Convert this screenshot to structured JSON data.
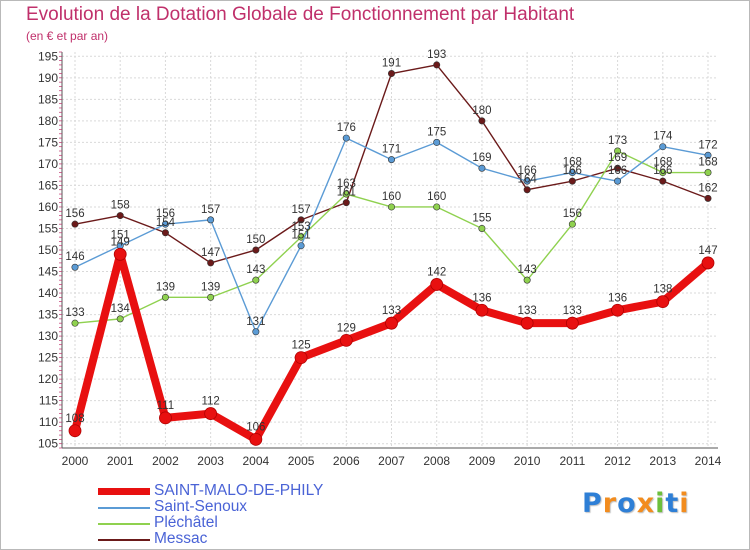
{
  "title": "Evolution de la Dotation Globale de Fonctionnement par Habitant",
  "subtitle": "(en € et par an)",
  "logo": {
    "text": "Proxiti",
    "letters": [
      {
        "ch": "P",
        "color": "#2e7fd6"
      },
      {
        "ch": "r",
        "color": "#f28c1e"
      },
      {
        "ch": "o",
        "color": "#2e7fd6"
      },
      {
        "ch": "x",
        "color": "#f28c1e"
      },
      {
        "ch": "i",
        "color": "#6dbf3b"
      },
      {
        "ch": "t",
        "color": "#2e7fd6"
      },
      {
        "ch": "i",
        "color": "#f28c1e"
      }
    ]
  },
  "chart_data": {
    "type": "line",
    "title": "Evolution de la Dotation Globale de Fonctionnement par Habitant",
    "subtitle": "(en € et par an)",
    "x": [
      "2000",
      "2001",
      "2002",
      "2003",
      "2004",
      "2005",
      "2006",
      "2007",
      "2008",
      "2009",
      "2010",
      "2011",
      "2012",
      "2013",
      "2014"
    ],
    "ylim": [
      104,
      196
    ],
    "yticks": [
      105,
      110,
      115,
      120,
      125,
      130,
      135,
      140,
      145,
      150,
      155,
      160,
      165,
      170,
      175,
      180,
      185,
      190,
      195
    ],
    "grid": true,
    "legend_position": "bottom-left",
    "series": [
      {
        "name": "SAINT-MALO-DE-PHILY",
        "color": "#e81010",
        "values": [
          108,
          149,
          111,
          112,
          106,
          125,
          129,
          133,
          142,
          136,
          133,
          133,
          136,
          138,
          147
        ]
      },
      {
        "name": "Saint-Senoux",
        "color": "#5b9bd5",
        "values": [
          146,
          151,
          156,
          157,
          131,
          151,
          176,
          171,
          175,
          169,
          166,
          168,
          166,
          174,
          172
        ]
      },
      {
        "name": "Pléchâtel",
        "color": "#8fd14f",
        "values": [
          133,
          134,
          139,
          139,
          143,
          153,
          163,
          160,
          160,
          155,
          143,
          156,
          173,
          168,
          168
        ]
      },
      {
        "name": "Messac",
        "color": "#6b1a1a",
        "values": [
          156,
          158,
          154,
          147,
          150,
          157,
          161,
          191,
          193,
          180,
          164,
          166,
          169,
          166,
          162
        ]
      }
    ]
  }
}
